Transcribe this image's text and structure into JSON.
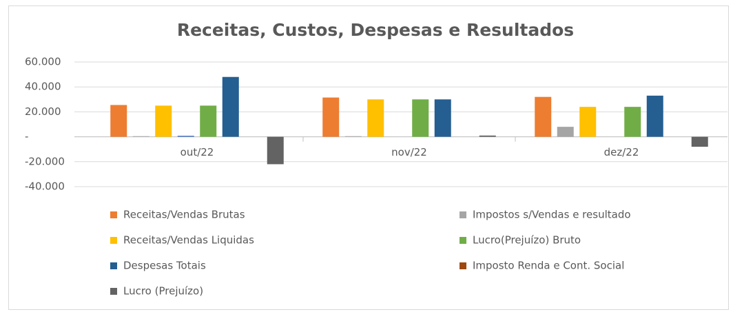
{
  "chart_data": {
    "type": "bar",
    "title": "Receitas, Custos, Despesas e Resultados",
    "categories": [
      "out/22",
      "nov/22",
      "dez/22"
    ],
    "series": [
      {
        "name": "Receitas/Vendas Brutas",
        "color": "#ed7d31",
        "values": [
          25500,
          31500,
          32000
        ]
      },
      {
        "name": "Impostos s/Vendas e resultado",
        "color": "#a5a5a5",
        "values": [
          500,
          500,
          8000
        ]
      },
      {
        "name": "Receitas/Vendas Liquidas",
        "color": "#ffc000",
        "values": [
          25000,
          30000,
          24000
        ]
      },
      {
        "name": null,
        "color": "#4472c4",
        "values": [
          800,
          0,
          0
        ]
      },
      {
        "name": "Lucro(Prejuízo) Bruto",
        "color": "#70ad47",
        "values": [
          25000,
          30000,
          24000
        ]
      },
      {
        "name": "Despesas Totais",
        "color": "#255e91",
        "values": [
          48000,
          30000,
          33000
        ]
      },
      {
        "name": "Imposto Renda e Cont. Social",
        "color": "#9e480e",
        "values": [
          0,
          0,
          0
        ]
      },
      {
        "name": "Lucro (Prejuízo)",
        "color": "#636363",
        "values": [
          -22000,
          1000,
          -8000
        ]
      }
    ],
    "ylim": [
      -40000,
      60000
    ],
    "yticks": [
      {
        "value": 60000,
        "label": "60.000"
      },
      {
        "value": 40000,
        "label": "40.000"
      },
      {
        "value": 20000,
        "label": "20.000"
      },
      {
        "value": 0,
        "label": "-"
      },
      {
        "value": -20000,
        "label": "-20.000"
      },
      {
        "value": -40000,
        "label": "-40.000"
      }
    ],
    "grid": true
  }
}
